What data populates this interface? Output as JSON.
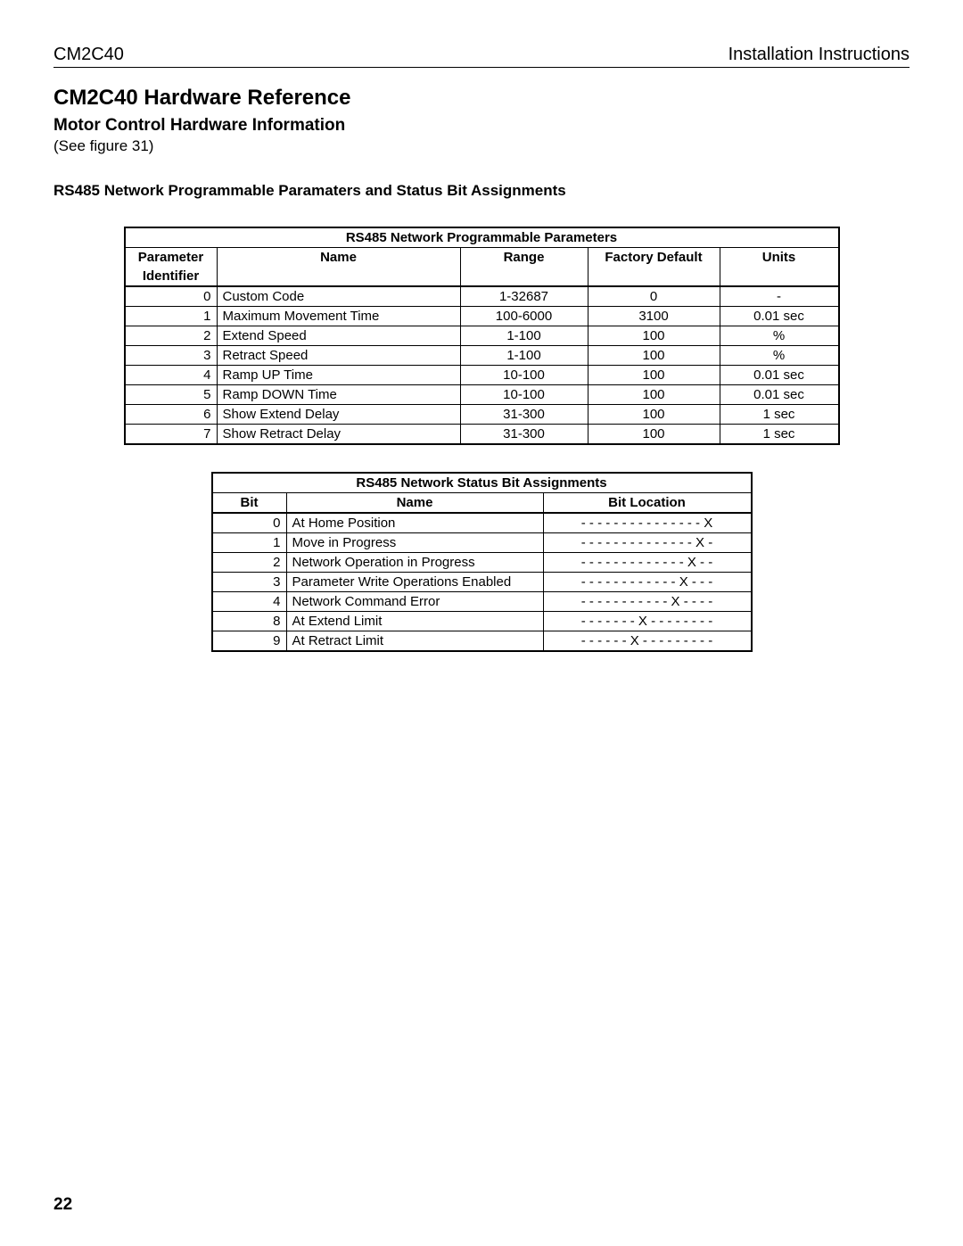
{
  "header": {
    "left": "CM2C40",
    "right": "Installation Instructions"
  },
  "title": "CM2C40 Hardware Reference",
  "subtitle": "Motor Control Hardware Information",
  "note": "(See figure 31)",
  "section": "RS485 Network Programmable Paramaters and Status Bit Assignments",
  "table1": {
    "title": "RS485 Network Programmable Parameters",
    "headers": {
      "c1a": "Parameter",
      "c1b": "Identifier",
      "c2": "Name",
      "c3": "Range",
      "c4": "Factory Default",
      "c5": "Units"
    },
    "rows": [
      [
        "0",
        "Custom Code",
        "1-32687",
        "0",
        "-"
      ],
      [
        "1",
        "Maximum Movement Time",
        "100-6000",
        "3100",
        "0.01 sec"
      ],
      [
        "2",
        "Extend Speed",
        "1-100",
        "100",
        "%"
      ],
      [
        "3",
        "Retract Speed",
        "1-100",
        "100",
        "%"
      ],
      [
        "4",
        "Ramp UP Time",
        "10-100",
        "100",
        "0.01 sec"
      ],
      [
        "5",
        "Ramp DOWN Time",
        "10-100",
        "100",
        "0.01 sec"
      ],
      [
        "6",
        "Show Extend Delay",
        "31-300",
        "100",
        "1 sec"
      ],
      [
        "7",
        "Show Retract Delay",
        "31-300",
        "100",
        "1 sec"
      ]
    ]
  },
  "table2": {
    "title": "RS485 Network Status Bit Assignments",
    "headers": {
      "c1": "Bit",
      "c2": "Name",
      "c3": "Bit Location"
    },
    "rows": [
      [
        "0",
        "At Home Position",
        "- - - - - - - - - - - - - - - X"
      ],
      [
        "1",
        "Move in Progress",
        "- - - - - - - - - - - - - - X -"
      ],
      [
        "2",
        "Network Operation in Progress",
        "- - - - - - - - - - - - - X - -"
      ],
      [
        "3",
        "Parameter Write Operations Enabled",
        "- - - - - - - - - - - - X - - -"
      ],
      [
        "4",
        "Network Command Error",
        "- - - - - - - - - - - X - - - -"
      ],
      [
        "8",
        "At Extend Limit",
        "- - - - - - - X - - - - - - - -"
      ],
      [
        "9",
        "At Retract Limit",
        "- - - - - - X - - - - - - - - -"
      ]
    ]
  },
  "page_number": "22"
}
